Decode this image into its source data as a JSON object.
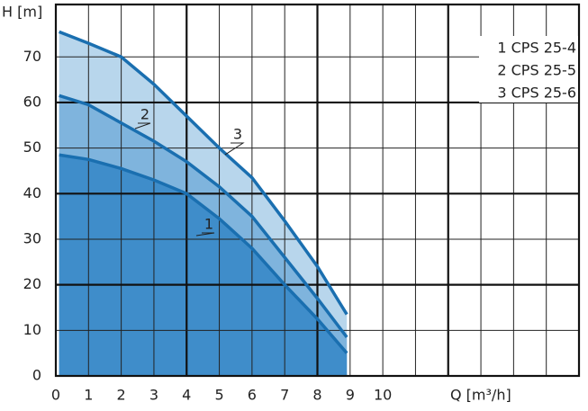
{
  "chart_data": {
    "type": "area-line",
    "y_label": "H [m]",
    "x_label": "Q [m³/h]",
    "xlim": [
      0,
      16
    ],
    "ylim": [
      0,
      81.5
    ],
    "xticks": [
      0,
      1,
      2,
      3,
      4,
      5,
      6,
      7,
      8,
      9,
      10
    ],
    "yticks": [
      0,
      10,
      20,
      30,
      40,
      50,
      60,
      70
    ],
    "xgrid": [
      0,
      1,
      2,
      3,
      4,
      5,
      6,
      7,
      8,
      9,
      10,
      11,
      12,
      13,
      14,
      15,
      16
    ],
    "xgrid_major": [
      4,
      8,
      12
    ],
    "ygrid_major": [
      20,
      40,
      60
    ],
    "line_color": "#1a6fb0",
    "x": [
      0.1,
      1,
      2,
      3,
      4,
      5,
      6,
      7,
      8,
      8.9
    ],
    "series": [
      {
        "name": "3 CPS 25-6",
        "label": "3",
        "color": "#b8d6ec",
        "values": [
          75.5,
          73,
          70,
          64,
          57,
          50,
          43.5,
          34,
          24,
          13.5
        ]
      },
      {
        "name": "2 CPS 25-5",
        "label": "2",
        "color": "#7fb4dd",
        "values": [
          61.5,
          59.5,
          55.5,
          51.5,
          47,
          41.5,
          35,
          26,
          17,
          8.5
        ]
      },
      {
        "name": "1 CPS 25-4",
        "label": "1",
        "color": "#3f8dca",
        "values": [
          48.5,
          47.5,
          45.5,
          43,
          40,
          34.5,
          28,
          20,
          12.5,
          5
        ]
      }
    ]
  }
}
